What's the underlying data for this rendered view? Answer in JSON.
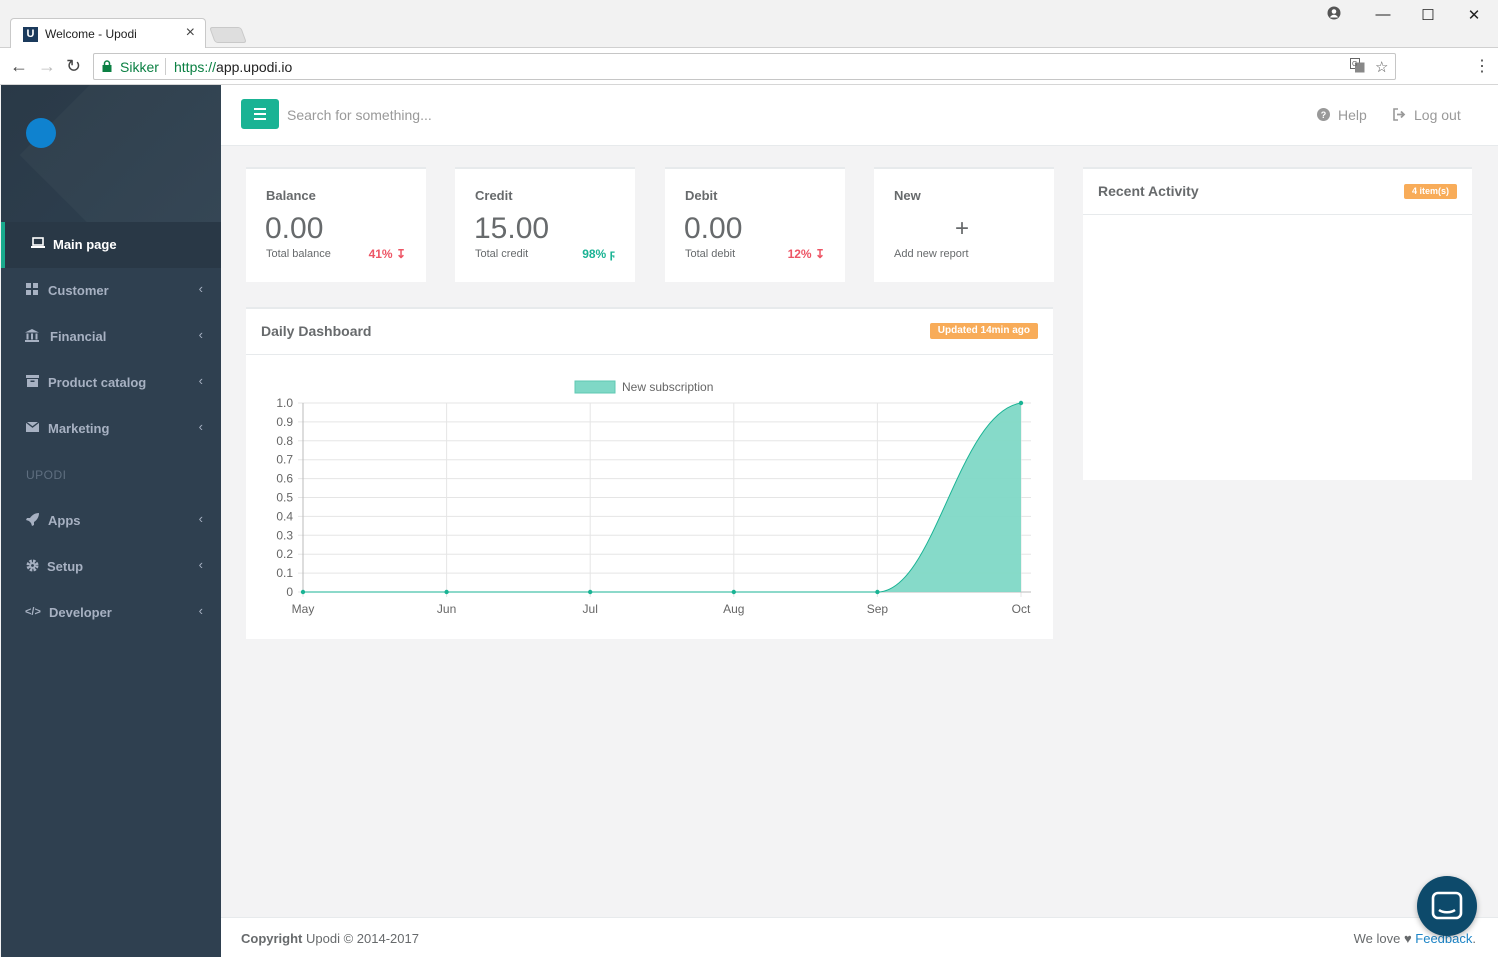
{
  "browser": {
    "tab_title": "Welcome - Upodi",
    "tab_favicon": "U",
    "security_label": "Sikker",
    "url_scheme": "https://",
    "url_host": "app.upodi.io"
  },
  "sidebar": {
    "items": [
      {
        "label": "Main page",
        "icon": "laptop-icon",
        "active": true
      },
      {
        "label": "Customer",
        "icon": "th-icon"
      },
      {
        "label": "Financial",
        "icon": "bank-icon"
      },
      {
        "label": "Product catalog",
        "icon": "archive-icon"
      },
      {
        "label": "Marketing",
        "icon": "envelope-icon"
      }
    ],
    "section_label": "UPODI",
    "items2": [
      {
        "label": "Apps",
        "icon": "rocket-icon"
      },
      {
        "label": "Setup",
        "icon": "cog-icon"
      },
      {
        "label": "Developer",
        "icon": "code-icon"
      }
    ]
  },
  "topbar": {
    "search_placeholder": "Search for something...",
    "help_label": "Help",
    "logout_label": "Log out"
  },
  "stats": [
    {
      "title": "Balance",
      "value": "0.00",
      "sub": "Total balance",
      "pct": "41%",
      "trend": "down"
    },
    {
      "title": "Credit",
      "value": "15.00",
      "sub": "Total credit",
      "pct": "98%",
      "trend": "bolt"
    },
    {
      "title": "Debit",
      "value": "0.00",
      "sub": "Total debit",
      "pct": "12%",
      "trend": "down"
    },
    {
      "title": "New",
      "plus": "+",
      "sub": "Add new report"
    }
  ],
  "dashboard": {
    "title": "Daily Dashboard",
    "badge": "Updated 14min ago"
  },
  "recent": {
    "title": "Recent Activity",
    "badge": "4 item(s)"
  },
  "chart_data": {
    "type": "area",
    "categories": [
      "May",
      "Jun",
      "Jul",
      "Aug",
      "Sep",
      "Oct"
    ],
    "series": [
      {
        "name": "New subscription",
        "values": [
          0,
          0,
          0,
          0,
          0,
          1.0
        ],
        "color": "#7fd8c6"
      }
    ],
    "yticks": [
      "0",
      "0.1",
      "0.2",
      "0.3",
      "0.4",
      "0.5",
      "0.6",
      "0.7",
      "0.8",
      "0.9",
      "1.0"
    ],
    "ylim": [
      0,
      1.0
    ],
    "legend": "top",
    "grid": true
  },
  "footer": {
    "copyright_bold": "Copyright",
    "copyright_text": "Upodi © 2014-2017",
    "love_text": "We love",
    "feedback_link": "Feedback",
    "feedback_end": "."
  },
  "colors": {
    "accent": "#1ab394",
    "sidebar": "#2f4050",
    "badge": "#f8ac59",
    "danger": "#ed5565"
  }
}
